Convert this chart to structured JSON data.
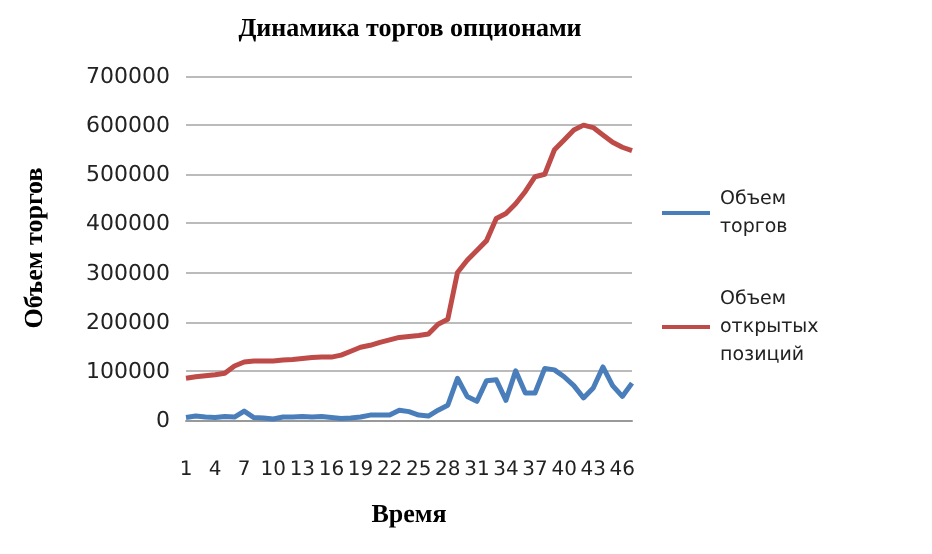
{
  "chart_data": {
    "type": "line",
    "title": "Динамика торгов опционами",
    "xlabel": "Время",
    "ylabel": "Объем торгов",
    "categories": [
      "1",
      null,
      null,
      "4",
      null,
      null,
      "7",
      null,
      null,
      "10",
      null,
      null,
      "13",
      null,
      null,
      "16",
      null,
      null,
      "19",
      null,
      null,
      "22",
      null,
      null,
      "25",
      null,
      null,
      "28",
      null,
      null,
      "31",
      null,
      null,
      "34",
      null,
      null,
      "37",
      null,
      null,
      "40",
      null,
      null,
      "43",
      null,
      null,
      "46",
      null
    ],
    "series": [
      {
        "name": "Объем торгов",
        "color": "#4a7ebb",
        "values": [
          5000,
          8000,
          6000,
          5000,
          7000,
          6000,
          18000,
          5000,
          4000,
          2000,
          6000,
          6000,
          7000,
          6000,
          7000,
          5000,
          3000,
          4000,
          6000,
          10000,
          10000,
          10000,
          20000,
          17000,
          10000,
          8000,
          20000,
          30000,
          85000,
          48000,
          38000,
          80000,
          82000,
          40000,
          100000,
          55000,
          55000,
          105000,
          102000,
          88000,
          70000,
          45000,
          65000,
          108000,
          70000,
          48000,
          75000
        ]
      },
      {
        "name": "Объем открытых позиций",
        "color": "#be4b48",
        "values": [
          85000,
          88000,
          90000,
          92000,
          95000,
          110000,
          118000,
          120000,
          120000,
          120000,
          122000,
          123000,
          125000,
          127000,
          128000,
          128000,
          132000,
          140000,
          148000,
          152000,
          158000,
          163000,
          168000,
          170000,
          172000,
          175000,
          195000,
          205000,
          300000,
          325000,
          345000,
          365000,
          410000,
          420000,
          440000,
          465000,
          495000,
          500000,
          550000,
          570000,
          590000,
          600000,
          595000,
          580000,
          565000,
          555000,
          548000
        ]
      }
    ],
    "ylim": [
      0,
      700000
    ],
    "yticks": [
      0,
      100000,
      200000,
      300000,
      400000,
      500000,
      600000,
      700000
    ],
    "grid": "y",
    "legend": "right",
    "marker": "none",
    "line_style": "solid"
  }
}
